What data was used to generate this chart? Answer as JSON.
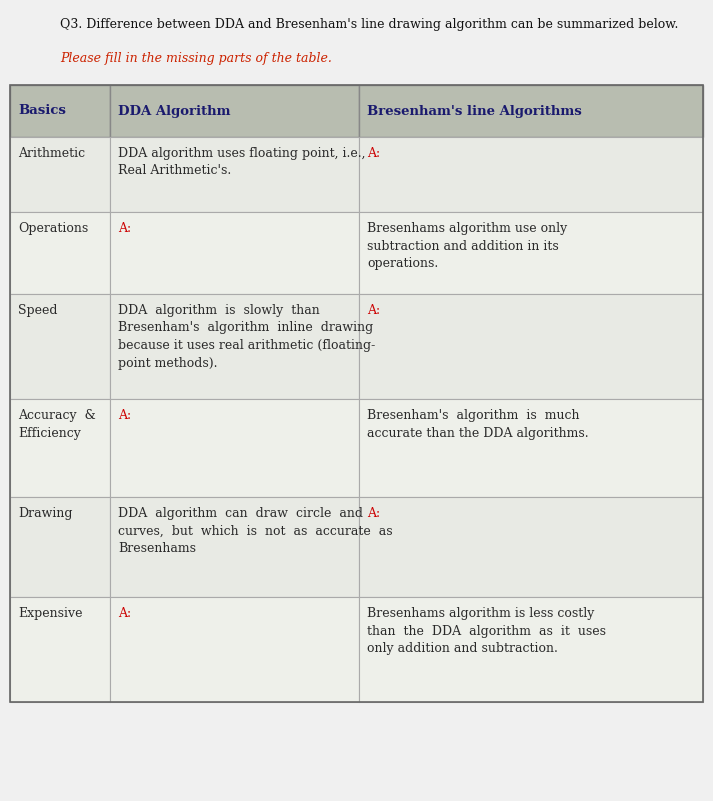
{
  "title_line1": "Q3. Difference between DDA and Bresenham's line drawing algorithm can be summarized below.",
  "title_line2": "Please fill in the missing parts of the table.",
  "bg_color": "#f0f0f0",
  "header_bg": "#b8bdb0",
  "row_bg_odd": "#e8eae4",
  "row_bg_even": "#eef0ea",
  "header_text_color": "#1a1a6e",
  "cell_text_color": "#2a2a2a",
  "red_color": "#cc0000",
  "headers": [
    "Basics",
    "DDA Algorithm",
    "Bresenham's line Algorithms"
  ],
  "rows": [
    {
      "basics": "Arithmetic",
      "dda": "DDA algorithm uses floating point, i.e.,\nReal Arithmetic's.",
      "dda_red": false,
      "bresenham": "A:",
      "bresenham_red": true
    },
    {
      "basics": "Operations",
      "dda": "A:",
      "dda_red": true,
      "bresenham": "Bresenhams algorithm use only\nsubtraction and addition in its\noperations.",
      "bresenham_red": false
    },
    {
      "basics": "Speed",
      "dda": "DDA  algorithm  is  slowly  than\nBresenham's  algorithm  inline  drawing\nbecause it uses real arithmetic (floating-\npoint methods).",
      "dda_red": false,
      "bresenham": "A:",
      "bresenham_red": true
    },
    {
      "basics": "Accuracy  &\nEfficiency",
      "dda": "A:",
      "dda_red": true,
      "bresenham": "Bresenham's  algorithm  is  much\naccurate than the DDA algorithms.",
      "bresenham_red": false
    },
    {
      "basics": "Drawing",
      "dda": "DDA  algorithm  can  draw  circle  and\ncurves,  but  which  is  not  as  accurate  as\nBresenhams",
      "dda_red": false,
      "bresenham": "A:",
      "bresenham_red": true
    },
    {
      "basics": "Expensive",
      "dda": "A:",
      "dda_red": true,
      "bresenham": "Bresenhams algorithm is less costly\nthan  the  DDA  algorithm  as  it  uses\nonly addition and subtraction.",
      "bresenham_red": false
    }
  ],
  "font_size_title": 9.0,
  "font_size_header": 9.5,
  "font_size_cell": 9.0
}
